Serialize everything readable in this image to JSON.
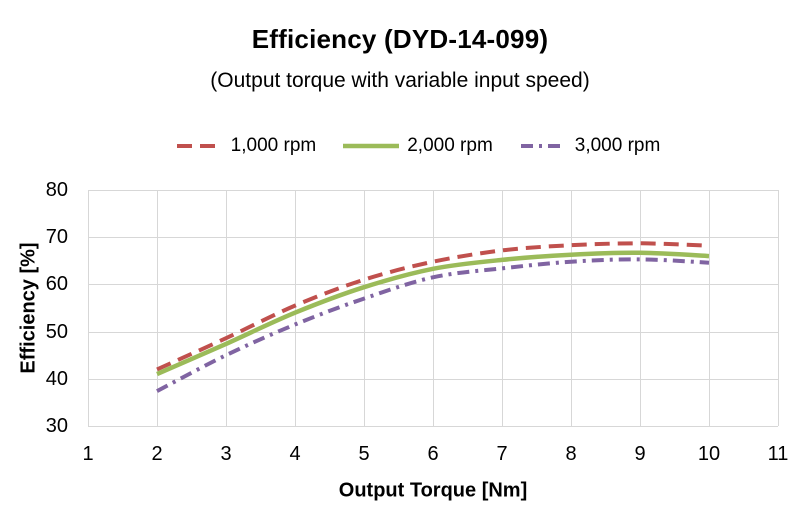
{
  "title": "Efficiency (DYD-14-099)",
  "subtitle": "(Output torque with variable input speed)",
  "chart_data": {
    "type": "line",
    "title": "Efficiency (DYD-14-099)",
    "subtitle": "(Output torque with variable input speed)",
    "xlabel": "Output Torque [Nm]",
    "ylabel": "Efficiency [%]",
    "xlim": [
      1,
      11
    ],
    "ylim": [
      30,
      80
    ],
    "x_ticks": [
      1,
      2,
      3,
      4,
      5,
      6,
      7,
      8,
      9,
      10,
      11
    ],
    "y_ticks": [
      30,
      40,
      50,
      60,
      70,
      80
    ],
    "grid": true,
    "grid_color": "#d7d7d7",
    "background": "#ffffff",
    "legend_position": "top",
    "x": [
      2,
      3,
      4,
      5,
      6,
      7,
      8,
      9,
      10
    ],
    "series": [
      {
        "name": "1,000 rpm",
        "color": "#c0504d",
        "line_style": "dashed",
        "dash": "15 8",
        "line_width": 4,
        "values": [
          42,
          48.6,
          55.5,
          61,
          64.8,
          67.2,
          68.3,
          68.7,
          68.2
        ]
      },
      {
        "name": "2,000 rpm",
        "color": "#9bbb59",
        "line_style": "solid",
        "dash": "",
        "line_width": 4.5,
        "values": [
          41,
          47.4,
          54,
          59.4,
          63.3,
          65.2,
          66.3,
          66.7,
          66
        ]
      },
      {
        "name": "3,000 rpm",
        "color": "#8064a2",
        "line_style": "dash-dot",
        "dash": "12 6 3 6",
        "line_width": 4,
        "values": [
          37.4,
          45,
          51.5,
          57,
          61.5,
          63.4,
          64.8,
          65.3,
          64.6
        ]
      }
    ]
  }
}
